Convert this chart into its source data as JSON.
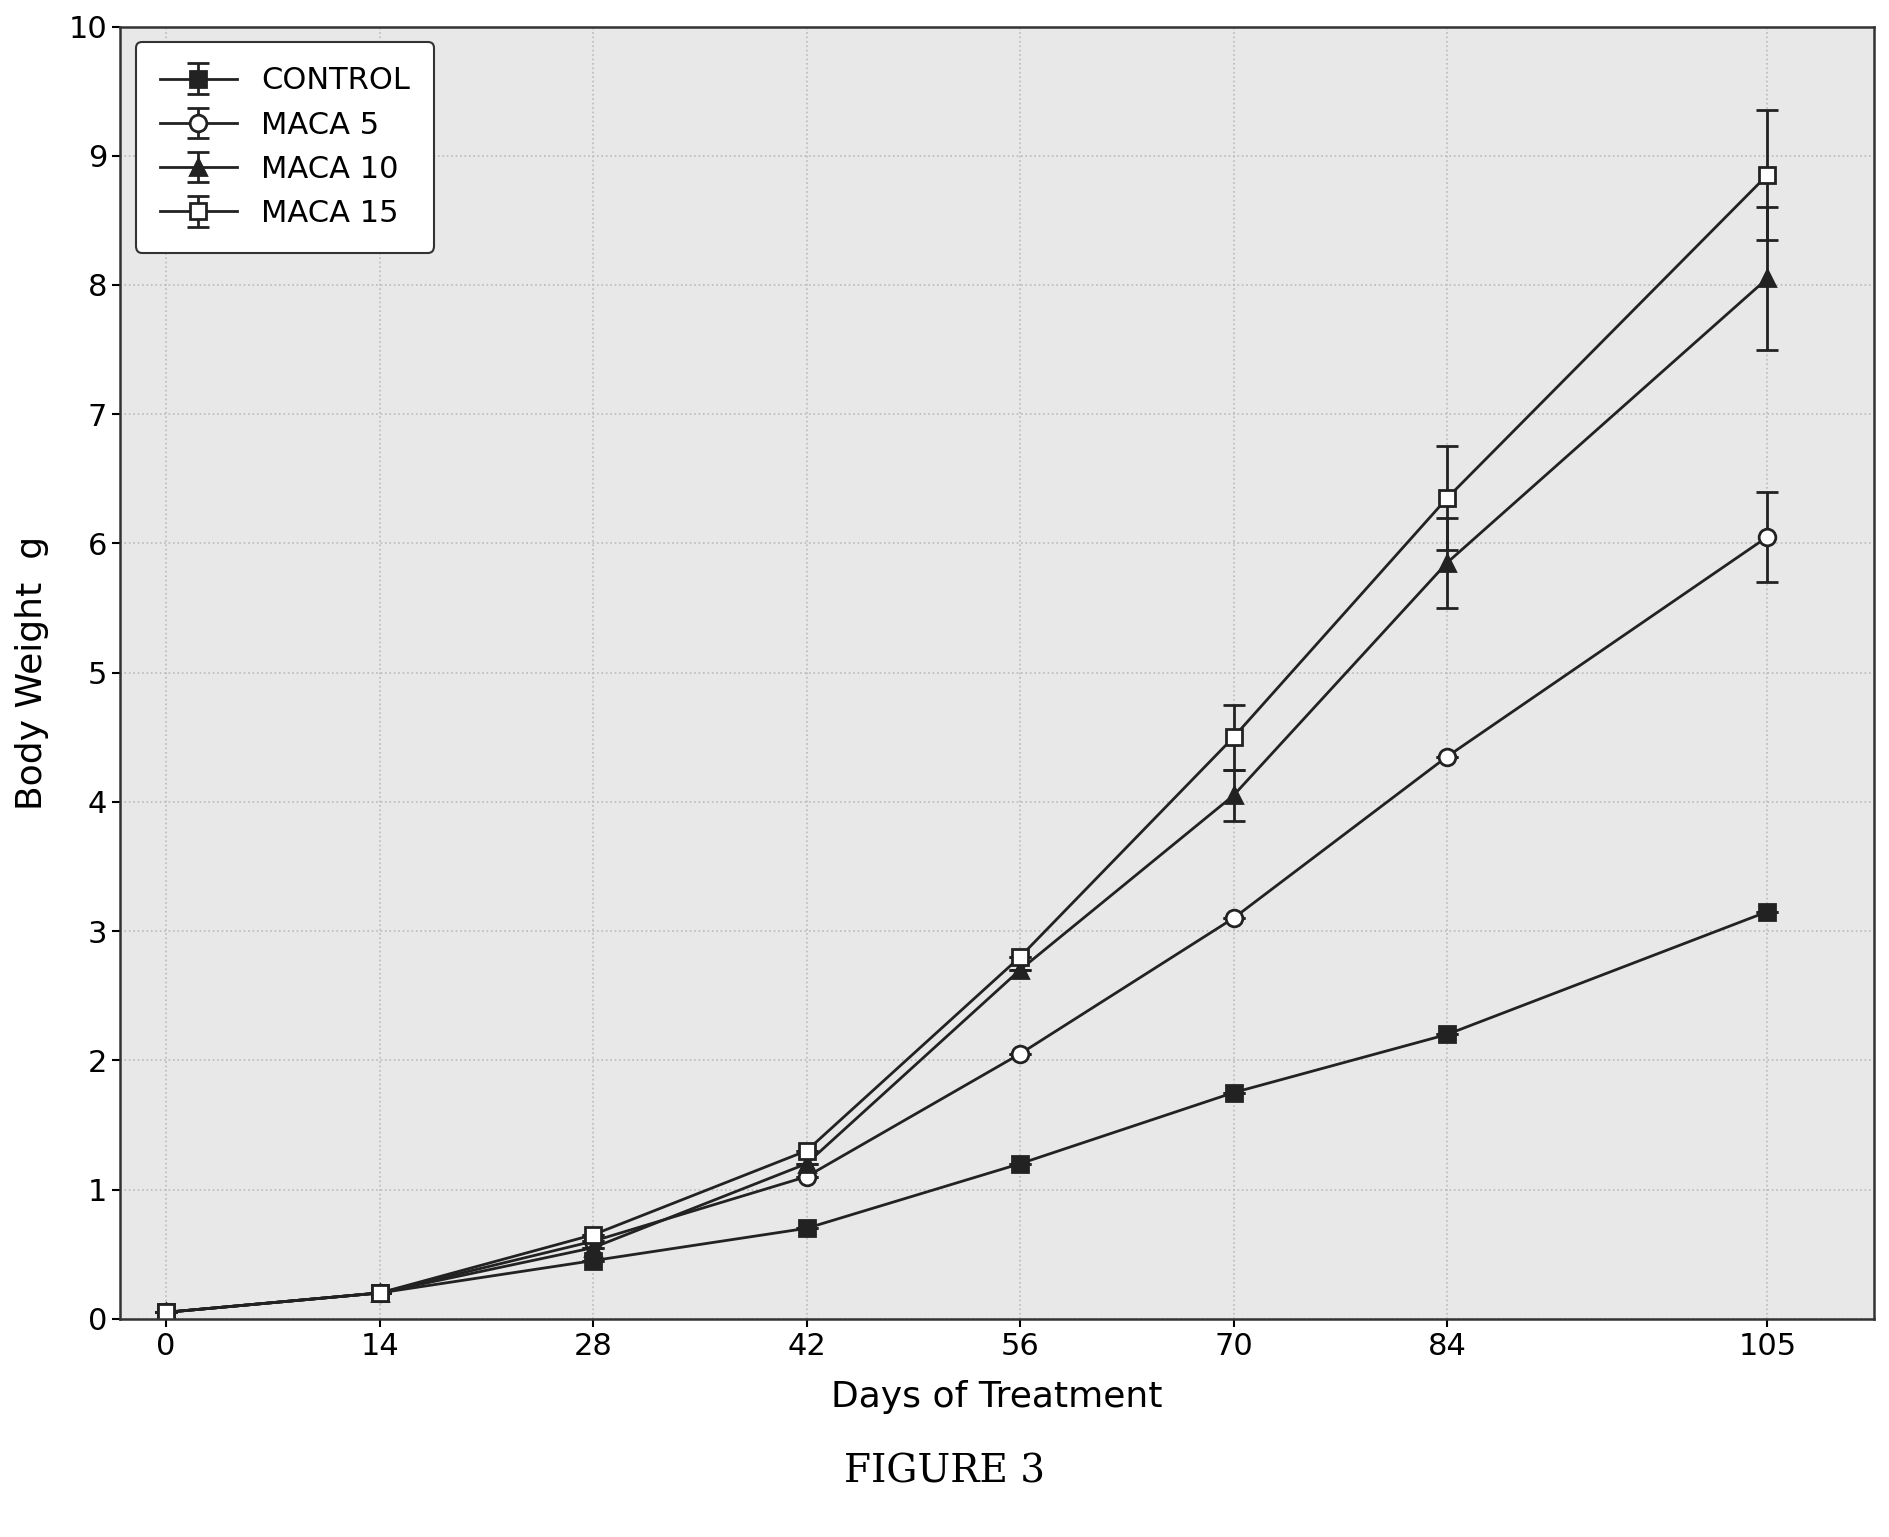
{
  "title": "FIGURE 3",
  "xlabel": "Days of Treatment",
  "ylabel": "Body Weight  g",
  "xlim": [
    -3,
    112
  ],
  "ylim": [
    0,
    10
  ],
  "xticks": [
    0,
    14,
    28,
    42,
    56,
    70,
    84,
    105
  ],
  "yticks": [
    0,
    1,
    2,
    3,
    4,
    5,
    6,
    7,
    8,
    9,
    10
  ],
  "series": [
    {
      "label": "CONTROL",
      "x": [
        0,
        14,
        28,
        42,
        56,
        70,
        84,
        105
      ],
      "y": [
        0.05,
        0.2,
        0.45,
        0.7,
        1.2,
        1.75,
        2.2,
        3.15
      ],
      "yerr": [
        0,
        0,
        0,
        0,
        0,
        0,
        0,
        0
      ],
      "marker": "s",
      "marker_filled": true,
      "color": "#222222",
      "linestyle": "-"
    },
    {
      "label": "MACA 5",
      "x": [
        0,
        14,
        28,
        42,
        56,
        70,
        84,
        105
      ],
      "y": [
        0.05,
        0.2,
        0.6,
        1.1,
        2.05,
        3.1,
        4.35,
        6.05
      ],
      "yerr": [
        0,
        0,
        0,
        0,
        0,
        0,
        0,
        0.35
      ],
      "marker": "o",
      "marker_filled": false,
      "color": "#222222",
      "linestyle": "-"
    },
    {
      "label": "MACA 10",
      "x": [
        0,
        14,
        28,
        42,
        56,
        70,
        84,
        105
      ],
      "y": [
        0.05,
        0.2,
        0.55,
        1.2,
        2.7,
        4.05,
        5.85,
        8.05
      ],
      "yerr": [
        0,
        0,
        0,
        0,
        0,
        0.2,
        0.35,
        0.55
      ],
      "marker": "^",
      "marker_filled": true,
      "color": "#222222",
      "linestyle": "-"
    },
    {
      "label": "MACA 15",
      "x": [
        0,
        14,
        28,
        42,
        56,
        70,
        84,
        105
      ],
      "y": [
        0.05,
        0.2,
        0.65,
        1.3,
        2.8,
        4.5,
        6.35,
        8.85
      ],
      "yerr": [
        0,
        0,
        0,
        0,
        0,
        0.25,
        0.4,
        0.5
      ],
      "marker": "s",
      "marker_filled": false,
      "color": "#222222",
      "linestyle": "-"
    }
  ],
  "legend_fontsize": 22,
  "axis_label_fontsize": 26,
  "tick_fontsize": 22,
  "figure_title_fontsize": 28,
  "grid_color": "#bbbbbb",
  "background_color": "#ffffff",
  "plot_bg_color": "#e8e8e8"
}
